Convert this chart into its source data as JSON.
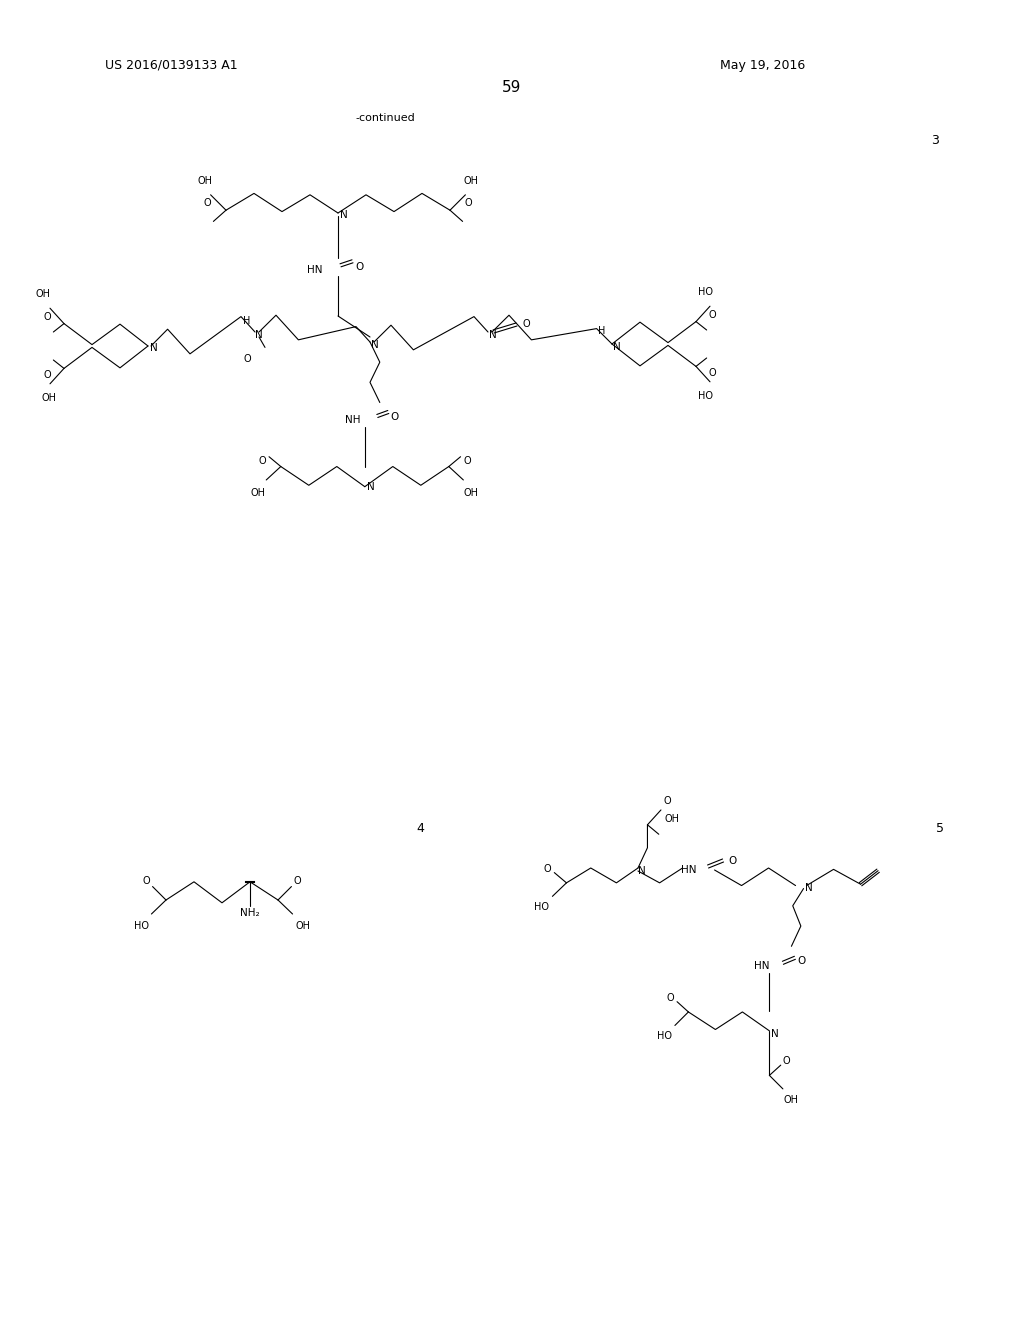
{
  "bg": "#ffffff",
  "page_num": "59",
  "patent": "US 2016/0139133 A1",
  "date": "May 19, 2016",
  "continued": "-continued",
  "label3": "3",
  "label4": "4",
  "label5": "5"
}
